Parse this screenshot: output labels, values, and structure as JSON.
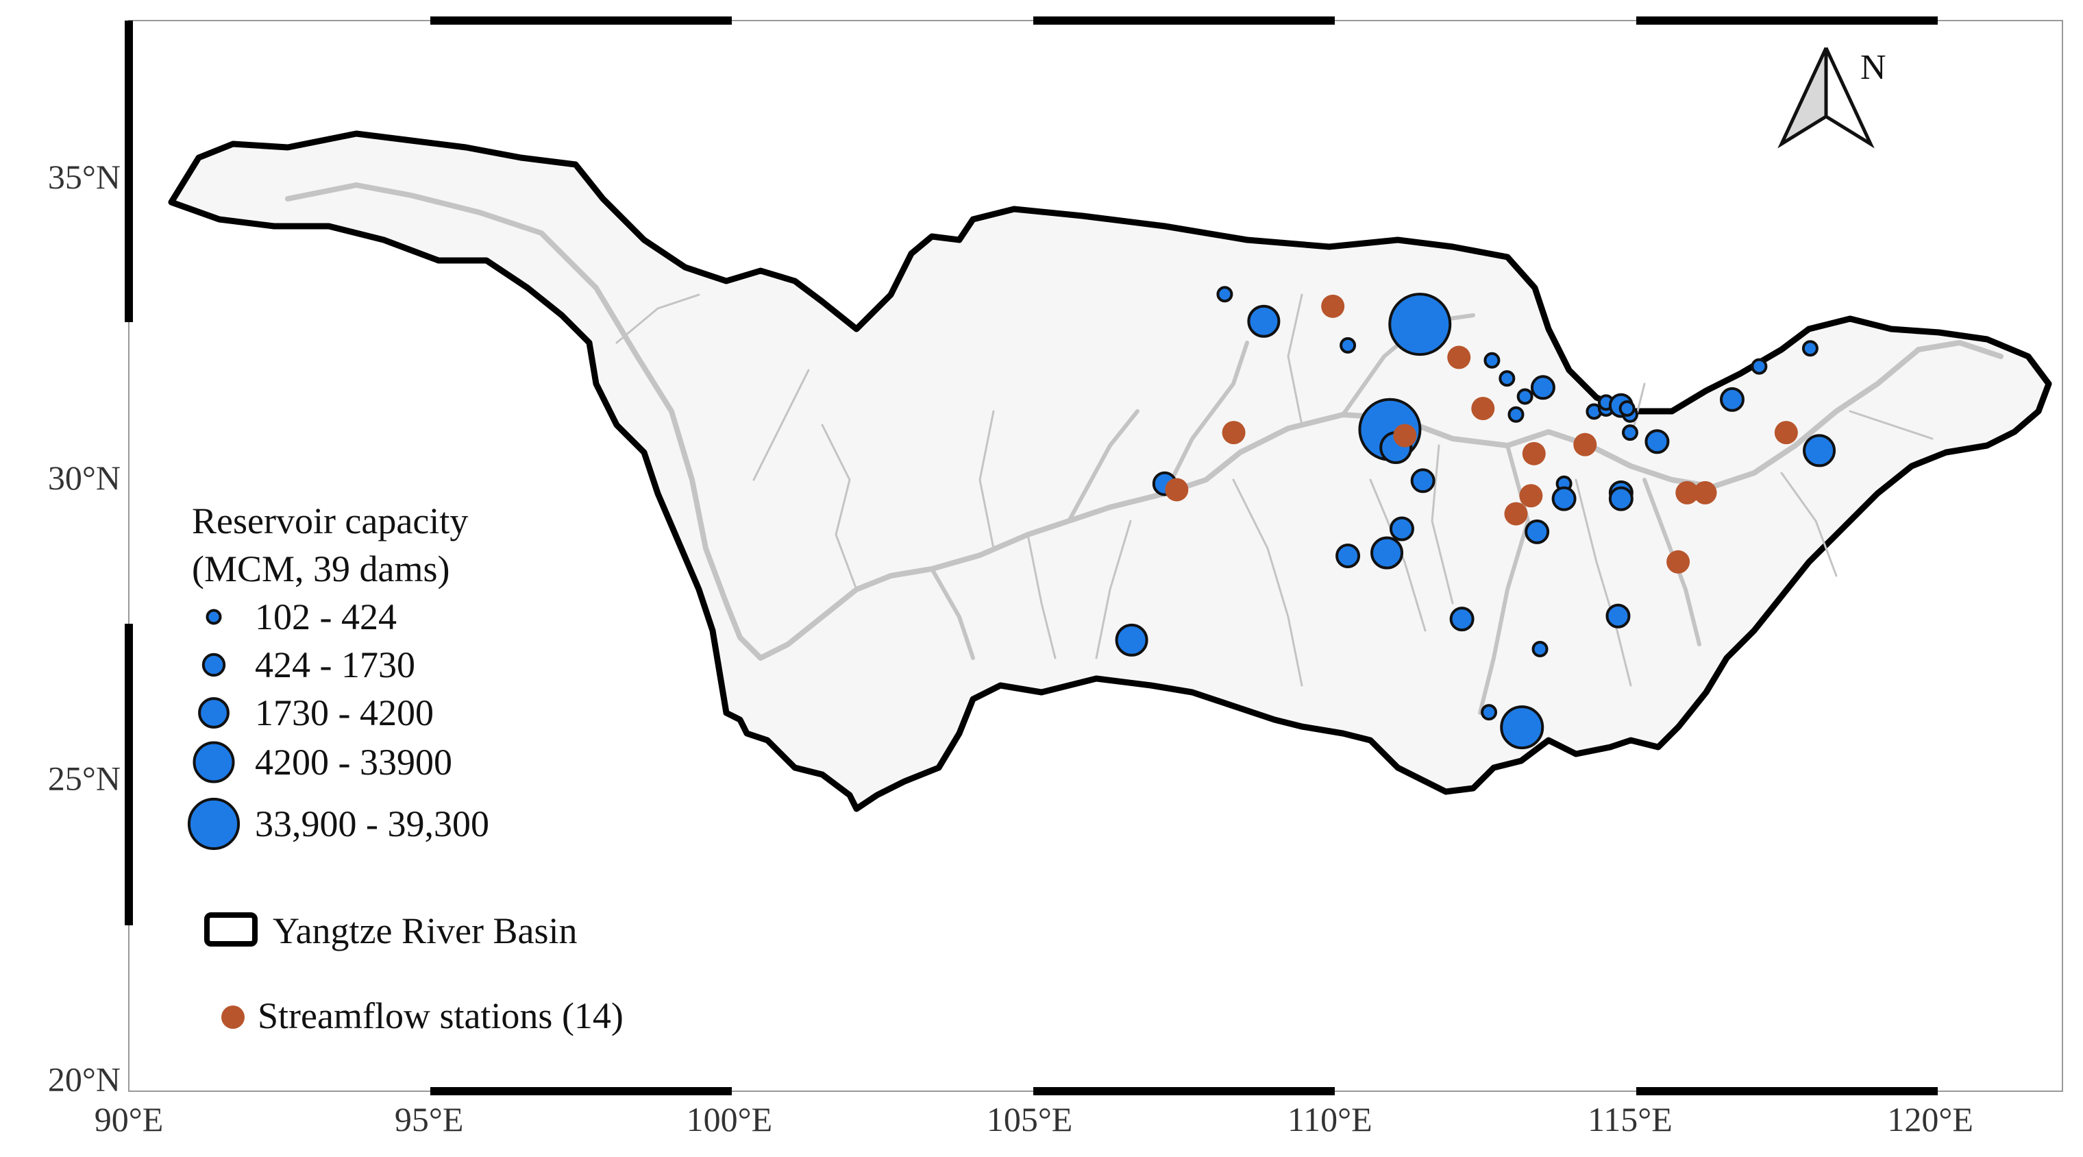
{
  "map": {
    "axes": {
      "lon_range": [
        90,
        122.2
      ],
      "lat_range": [
        19.8,
        37.6
      ],
      "x_ticks": [
        {
          "value": 90,
          "label": "90°E"
        },
        {
          "value": 95,
          "label": "95°E"
        },
        {
          "value": 100,
          "label": "100°E"
        },
        {
          "value": 105,
          "label": "105°E"
        },
        {
          "value": 110,
          "label": "110°E"
        },
        {
          "value": 115,
          "label": "115°E"
        },
        {
          "value": 120,
          "label": "120°E"
        }
      ],
      "y_ticks": [
        {
          "value": 35,
          "label": "35°N"
        },
        {
          "value": 30,
          "label": "30°N"
        },
        {
          "value": 25,
          "label": "25°N"
        },
        {
          "value": 20,
          "label": "20°N"
        }
      ]
    },
    "north_arrow": {
      "label": "N"
    },
    "legend": {
      "capacity_title_line1": "Reservoir capacity",
      "capacity_title_line2": "(MCM, 39 dams)",
      "classes": [
        {
          "label": "102 - 424"
        },
        {
          "label": "424 - 1730"
        },
        {
          "label": "1730 - 4200"
        },
        {
          "label": "4200 - 33900"
        },
        {
          "label": "33,900 - 39,300"
        }
      ],
      "basin_label": "Yangtze River Basin",
      "stations_label": "Streamflow stations (14)"
    },
    "colors": {
      "dam": "#1e7be6",
      "station": "#b8552c",
      "basin_outline": "#000000",
      "rivers": "#c0c0c0"
    },
    "dams": [
      {
        "lon": 108.25,
        "lat": 33.05,
        "class": 0
      },
      {
        "lon": 108.9,
        "lat": 32.6,
        "class": 2
      },
      {
        "lon": 110.3,
        "lat": 32.2,
        "class": 0
      },
      {
        "lon": 111.5,
        "lat": 32.55,
        "class": 4
      },
      {
        "lon": 112.7,
        "lat": 31.95,
        "class": 0
      },
      {
        "lon": 112.95,
        "lat": 31.65,
        "class": 0
      },
      {
        "lon": 113.25,
        "lat": 31.35,
        "class": 0
      },
      {
        "lon": 113.55,
        "lat": 31.5,
        "class": 1
      },
      {
        "lon": 113.1,
        "lat": 31.05,
        "class": 0
      },
      {
        "lon": 114.4,
        "lat": 31.1,
        "class": 0
      },
      {
        "lon": 114.6,
        "lat": 31.15,
        "class": 0
      },
      {
        "lon": 114.6,
        "lat": 31.25,
        "class": 0
      },
      {
        "lon": 114.85,
        "lat": 31.2,
        "class": 1
      },
      {
        "lon": 115.0,
        "lat": 31.05,
        "class": 0
      },
      {
        "lon": 115.0,
        "lat": 30.75,
        "class": 0
      },
      {
        "lon": 115.45,
        "lat": 30.6,
        "class": 1
      },
      {
        "lon": 111.0,
        "lat": 30.8,
        "class": 4
      },
      {
        "lon": 111.1,
        "lat": 30.5,
        "class": 2
      },
      {
        "lon": 111.55,
        "lat": 29.95,
        "class": 1
      },
      {
        "lon": 107.25,
        "lat": 29.9,
        "class": 1
      },
      {
        "lon": 113.9,
        "lat": 29.9,
        "class": 0
      },
      {
        "lon": 113.9,
        "lat": 29.65,
        "class": 1
      },
      {
        "lon": 114.85,
        "lat": 29.75,
        "class": 1
      },
      {
        "lon": 114.85,
        "lat": 29.65,
        "class": 1
      },
      {
        "lon": 111.2,
        "lat": 29.15,
        "class": 1
      },
      {
        "lon": 113.45,
        "lat": 29.1,
        "class": 1
      },
      {
        "lon": 110.3,
        "lat": 28.7,
        "class": 1
      },
      {
        "lon": 110.95,
        "lat": 28.75,
        "class": 2
      },
      {
        "lon": 112.2,
        "lat": 27.65,
        "class": 1
      },
      {
        "lon": 114.8,
        "lat": 27.7,
        "class": 1
      },
      {
        "lon": 106.7,
        "lat": 27.3,
        "class": 2
      },
      {
        "lon": 113.5,
        "lat": 27.15,
        "class": 0
      },
      {
        "lon": 112.65,
        "lat": 26.1,
        "class": 0
      },
      {
        "lon": 113.2,
        "lat": 25.85,
        "class": 3
      },
      {
        "lon": 116.7,
        "lat": 31.3,
        "class": 1
      },
      {
        "lon": 117.15,
        "lat": 31.85,
        "class": 0
      },
      {
        "lon": 118.0,
        "lat": 32.15,
        "class": 0
      },
      {
        "lon": 118.15,
        "lat": 30.45,
        "class": 2
      },
      {
        "lon": 114.95,
        "lat": 31.15,
        "class": 0
      }
    ],
    "stations": [
      {
        "lon": 110.05,
        "lat": 32.85
      },
      {
        "lon": 112.15,
        "lat": 32.0
      },
      {
        "lon": 112.55,
        "lat": 31.15
      },
      {
        "lon": 111.25,
        "lat": 30.7
      },
      {
        "lon": 108.4,
        "lat": 30.75
      },
      {
        "lon": 107.45,
        "lat": 29.8
      },
      {
        "lon": 113.4,
        "lat": 30.4
      },
      {
        "lon": 114.25,
        "lat": 30.55
      },
      {
        "lon": 113.35,
        "lat": 29.7
      },
      {
        "lon": 113.1,
        "lat": 29.4
      },
      {
        "lon": 115.95,
        "lat": 29.75
      },
      {
        "lon": 116.25,
        "lat": 29.75
      },
      {
        "lon": 115.8,
        "lat": 28.6
      },
      {
        "lon": 117.6,
        "lat": 30.75
      }
    ]
  }
}
